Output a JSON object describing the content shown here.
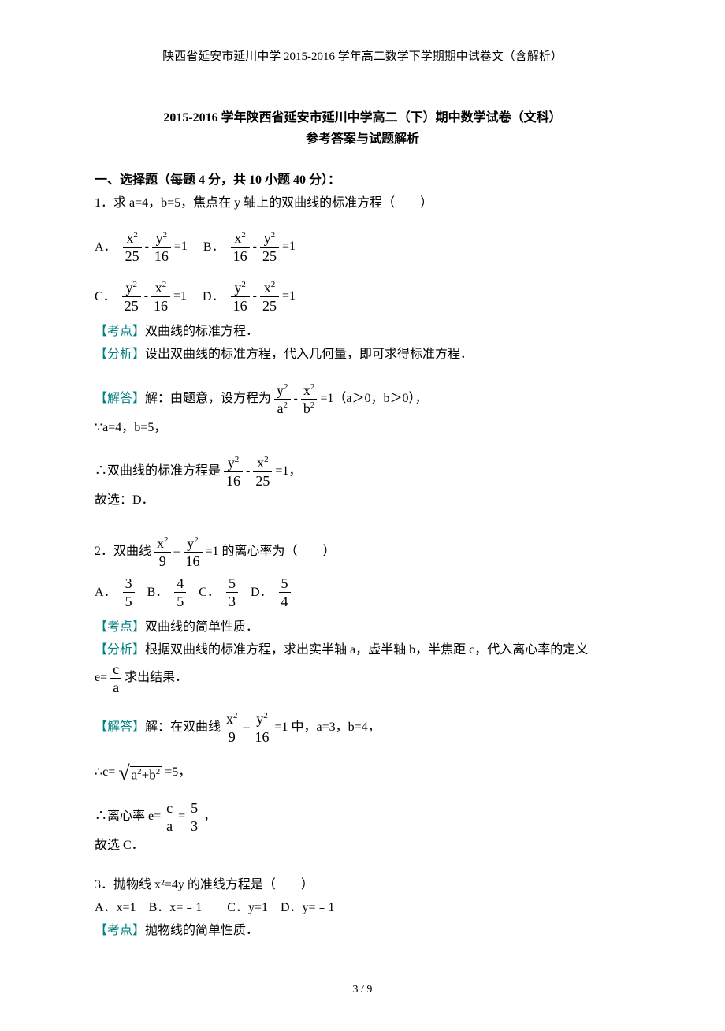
{
  "header": "陕西省延安市延川中学 2015-2016 学年高二数学下学期期中试卷文（含解析）",
  "title1": "2015-2016 学年陕西省延安市延川中学高二（下）期中数学试卷（文科）",
  "title2": "参考答案与试题解析",
  "section1": "一、选择题（每题 4 分，共 10 小题 40 分）：",
  "q1": {
    "stem": "1．求 a=4，b=5，焦点在 y 轴上的双曲线的标准方程（　　）",
    "optA": "A．",
    "optB": "B．",
    "optC": "C．",
    "optD": "D．",
    "kd_label": "【考点】",
    "kd": "双曲线的标准方程．",
    "fx_label": "【分析】",
    "fx": "设出双曲线的标准方程，代入几何量，即可求得标准方程．",
    "jd_label": "【解答】",
    "jd1_pre": "解：由题意，设方程为",
    "jd1_post": "=1（a＞0，b＞0），",
    "jd2": "∵a=4，b=5，",
    "jd3_pre": "∴双曲线的标准方程是",
    "jd3_post": "=1，",
    "jd4": "故选：D．"
  },
  "q2": {
    "stem_pre": "2．双曲线",
    "stem_post": "=1 的离心率为（　　）",
    "optA": "A．",
    "optB": "B．",
    "optC": "C．",
    "optD": "D．",
    "kd_label": "【考点】",
    "kd": "双曲线的简单性质．",
    "fx_label": "【分析】",
    "fx1": "根据双曲线的标准方程，求出实半轴 a，虚半轴 b，半焦距 c，代入离心率的定义",
    "fx2_pre": "e=",
    "fx2_post": " 求出结果．",
    "jd_label": "【解答】",
    "jd1_pre": "解：在双曲线",
    "jd1_post": "=1 中，a=3，b=4，",
    "jd2_pre": "∴c=",
    "jd2_post": "=5，",
    "jd3_pre": "∴离心率 e=",
    "jd3_post": "，",
    "jd4": "故选 C．"
  },
  "q3": {
    "stem": "3．抛物线 x²=4y 的准线方程是（　　）",
    "opts": "A．x=1　B．x=﹣1　　C．y=1　D．y=﹣1",
    "kd_label": "【考点】",
    "kd": "抛物线的简单性质．"
  },
  "page_num": "3 / 9"
}
